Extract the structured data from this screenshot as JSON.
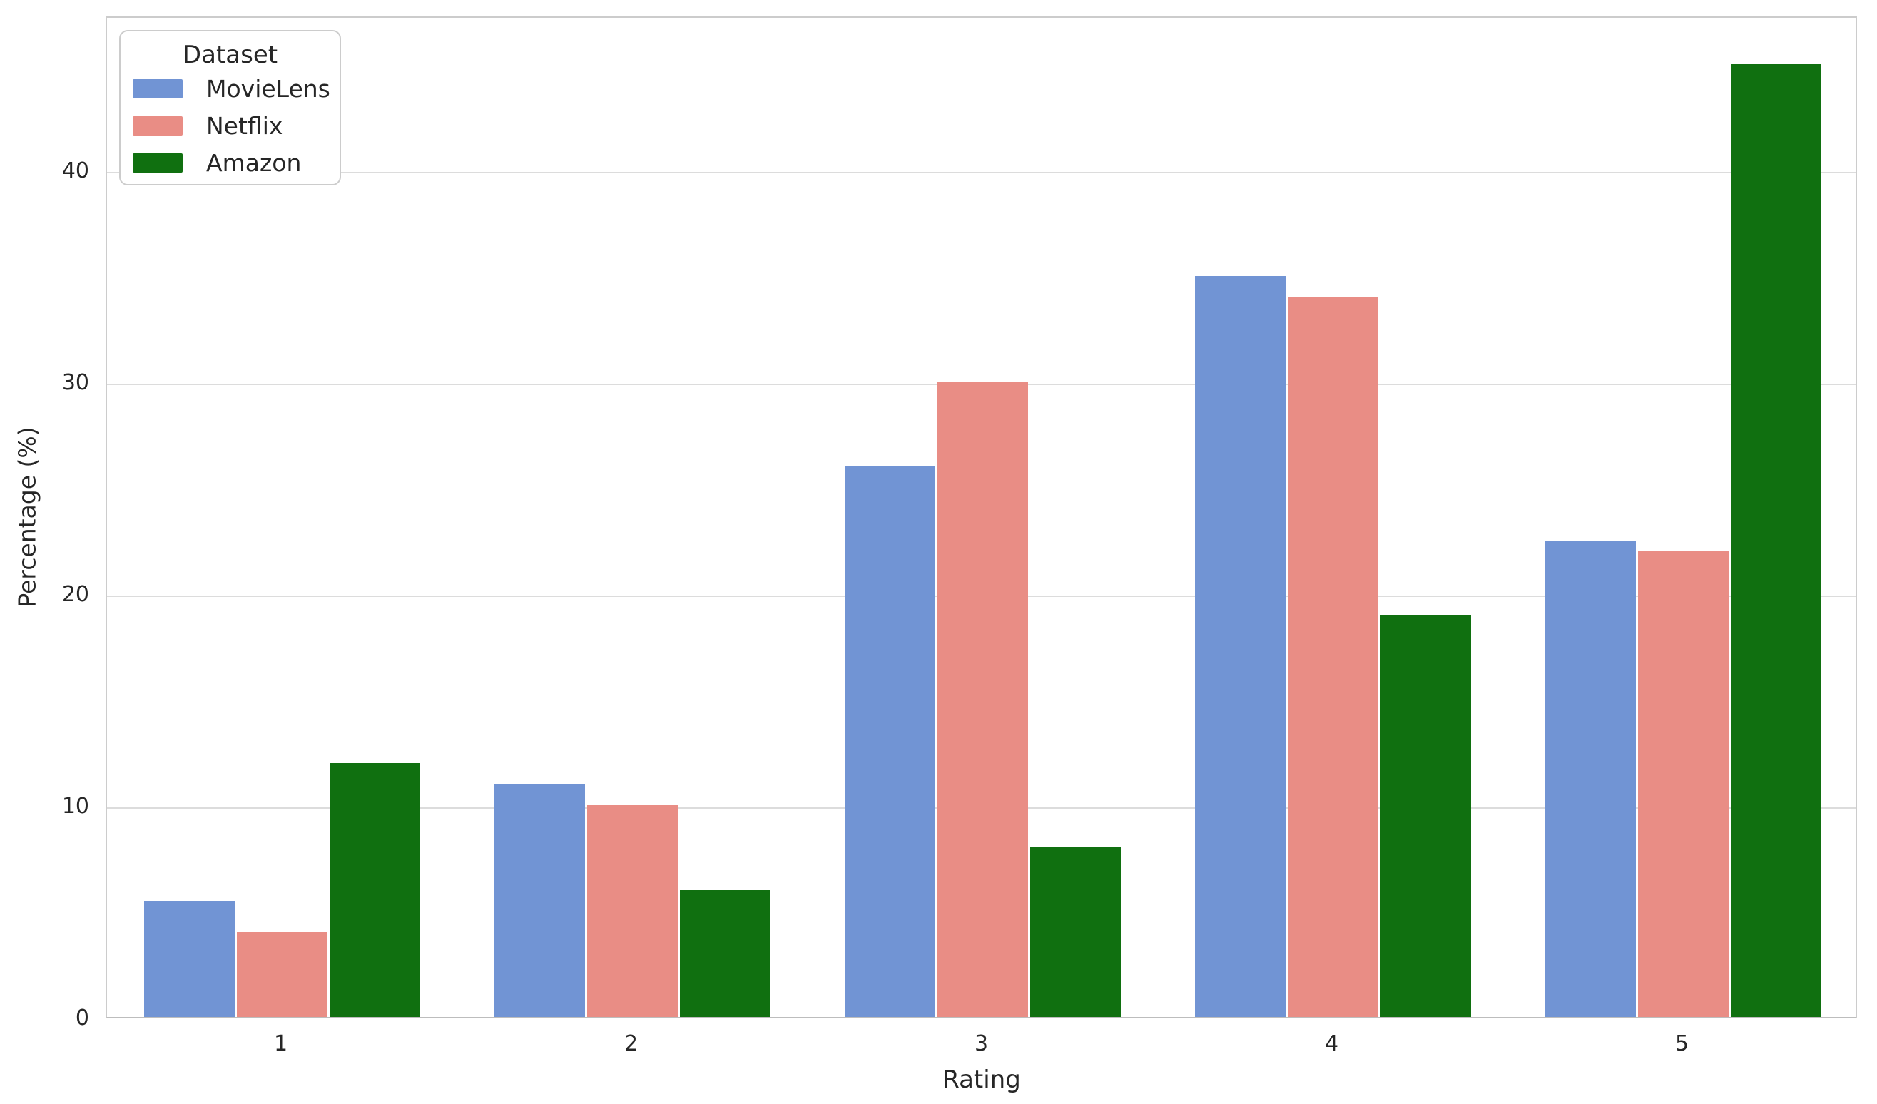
{
  "chart_data": {
    "type": "bar",
    "title": "",
    "xlabel": "Rating",
    "ylabel": "Percentage (%)",
    "categories": [
      "1",
      "2",
      "3",
      "4",
      "5"
    ],
    "series": [
      {
        "name": "MovieLens",
        "color": "#7194d4",
        "values": [
          5.5,
          11,
          26,
          35,
          22.5
        ]
      },
      {
        "name": "Netflix",
        "color": "#e98d85",
        "values": [
          4,
          10,
          30,
          34,
          22
        ]
      },
      {
        "name": "Amazon",
        "color": "#107010",
        "values": [
          12,
          6,
          8,
          19,
          45
        ]
      }
    ],
    "yticks": [
      0,
      10,
      20,
      30,
      40
    ],
    "ylim": [
      0,
      47.3
    ],
    "grid": true,
    "legend": {
      "title": "Dataset",
      "position": "upper-left"
    },
    "styles": {
      "grid_color": "#dcdcdc",
      "border_color": "#cccccc",
      "axis_color": "#bdbdbd",
      "text_color": "#262626",
      "background": "#ffffff"
    }
  }
}
